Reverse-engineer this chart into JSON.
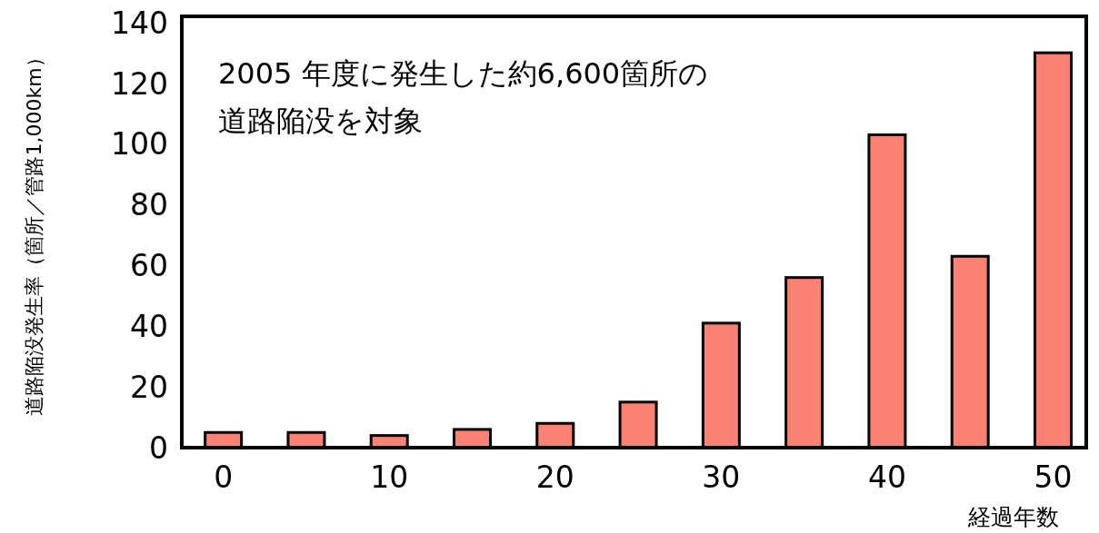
{
  "chart_data": {
    "type": "bar",
    "xlabel": "経過年数",
    "ylabel": "道路陥没発生率（箇所／管路1,000km）",
    "annotations": [
      "2005 年度に発生した約6,600箇所の",
      "道路陥没を対象"
    ],
    "x": [
      0,
      5,
      10,
      15,
      20,
      25,
      30,
      35,
      40,
      45,
      50
    ],
    "values": [
      5,
      5,
      4,
      6,
      8,
      15,
      41,
      56,
      103,
      63,
      130
    ],
    "color": "#f98274",
    "xlim": [
      -2.5,
      52
    ],
    "xticks": [
      0,
      10,
      20,
      30,
      40,
      50
    ],
    "ylim": [
      0,
      142
    ],
    "yticks": [
      0,
      20,
      40,
      60,
      80,
      100,
      120,
      140
    ],
    "grid": false
  }
}
